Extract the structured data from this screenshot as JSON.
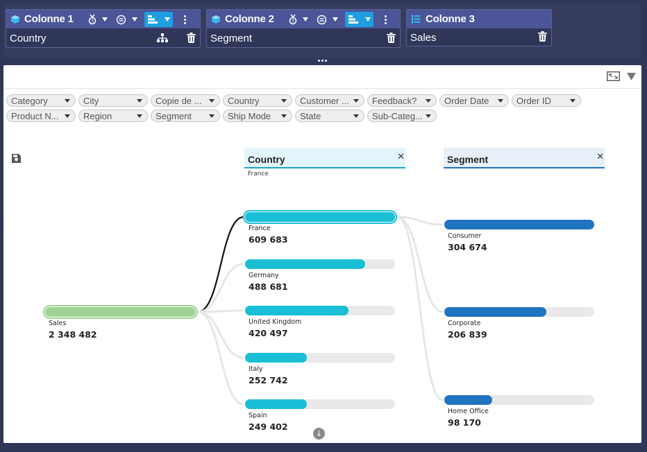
{
  "columns": [
    {
      "title": "Colonne 1",
      "field": "Country"
    },
    {
      "title": "Colonne 2",
      "field": "Segment"
    },
    {
      "title": "Colonne 3",
      "field": "Sales"
    }
  ],
  "filters": [
    "Category",
    "City",
    "Copie de ...",
    "Country",
    "Customer ...",
    "Feedback?",
    "Order Date",
    "Order ID",
    "Product N...",
    "Region",
    "Segment",
    "Ship Mode",
    "State",
    "Sub-Categ..."
  ],
  "tree": {
    "root": {
      "label": "Sales",
      "value": "2 348 482",
      "fraction": 1.0,
      "color": "#9fd395"
    },
    "level1": {
      "header": "Country",
      "subtitle": "France",
      "color": "#1abfd6",
      "nodes": [
        {
          "label": "France",
          "value": "609 683",
          "fraction": 1.0
        },
        {
          "label": "Germany",
          "value": "488 681",
          "fraction": 0.8
        },
        {
          "label": "United Kingdom",
          "value": "420 497",
          "fraction": 0.69
        },
        {
          "label": "Italy",
          "value": "252 742",
          "fraction": 0.41
        },
        {
          "label": "Spain",
          "value": "249 402",
          "fraction": 0.41
        }
      ]
    },
    "level2": {
      "header": "Segment",
      "color": "#1f73c1",
      "nodes": [
        {
          "label": "Consumer",
          "value": "304 674",
          "fraction": 1.0
        },
        {
          "label": "Corporate",
          "value": "206 839",
          "fraction": 0.68
        },
        {
          "label": "Home Office",
          "value": "98 170",
          "fraction": 0.32
        }
      ]
    }
  }
}
